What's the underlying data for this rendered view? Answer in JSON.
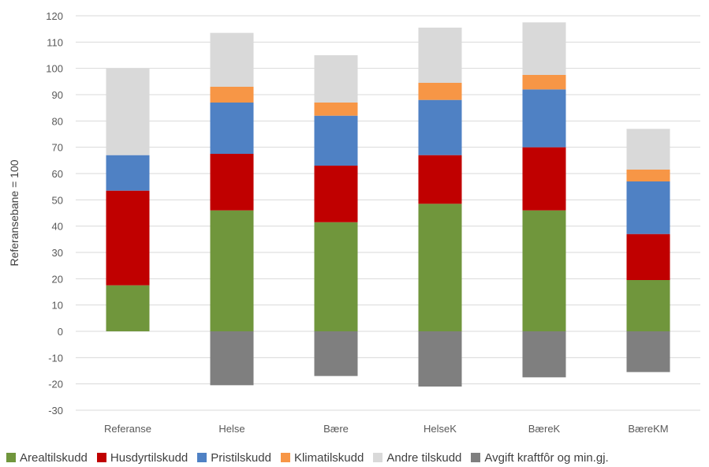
{
  "chart_data": {
    "type": "bar",
    "stacked": true,
    "title": "",
    "xlabel": "",
    "ylabel": "Referansebane = 100",
    "ylim": [
      -30,
      120
    ],
    "yticks": [
      -30,
      -20,
      -10,
      0,
      10,
      20,
      30,
      40,
      50,
      60,
      70,
      80,
      90,
      100,
      110,
      120
    ],
    "grid": true,
    "legend_position": "bottom",
    "categories": [
      "Referanse",
      "Helse",
      "Bære",
      "HelseK",
      "BæreK",
      "BæreKM"
    ],
    "series": [
      {
        "name": "Arealtilskudd",
        "color": "#70963c",
        "values": [
          17.5,
          46,
          41.5,
          48.5,
          46,
          19.5
        ]
      },
      {
        "name": "Husdyrtilskudd",
        "color": "#c00000",
        "values": [
          36,
          21.5,
          21.5,
          18.5,
          24,
          17.5
        ]
      },
      {
        "name": "Pristilskudd",
        "color": "#4f81c4",
        "values": [
          13.5,
          19.5,
          19,
          21,
          22,
          20
        ]
      },
      {
        "name": "Klimatilskudd",
        "color": "#f79646",
        "values": [
          0,
          6,
          5,
          6.5,
          5.5,
          4.5
        ]
      },
      {
        "name": "Andre tilskudd",
        "color": "#d9d9d9",
        "values": [
          33,
          20.5,
          18,
          21,
          20,
          15.5
        ]
      },
      {
        "name": "Avgift kraftfôr og min.gj.",
        "color": "#7f7f7f",
        "values": [
          0,
          -20.5,
          -17,
          -21,
          -17.5,
          -15.5
        ]
      }
    ]
  }
}
